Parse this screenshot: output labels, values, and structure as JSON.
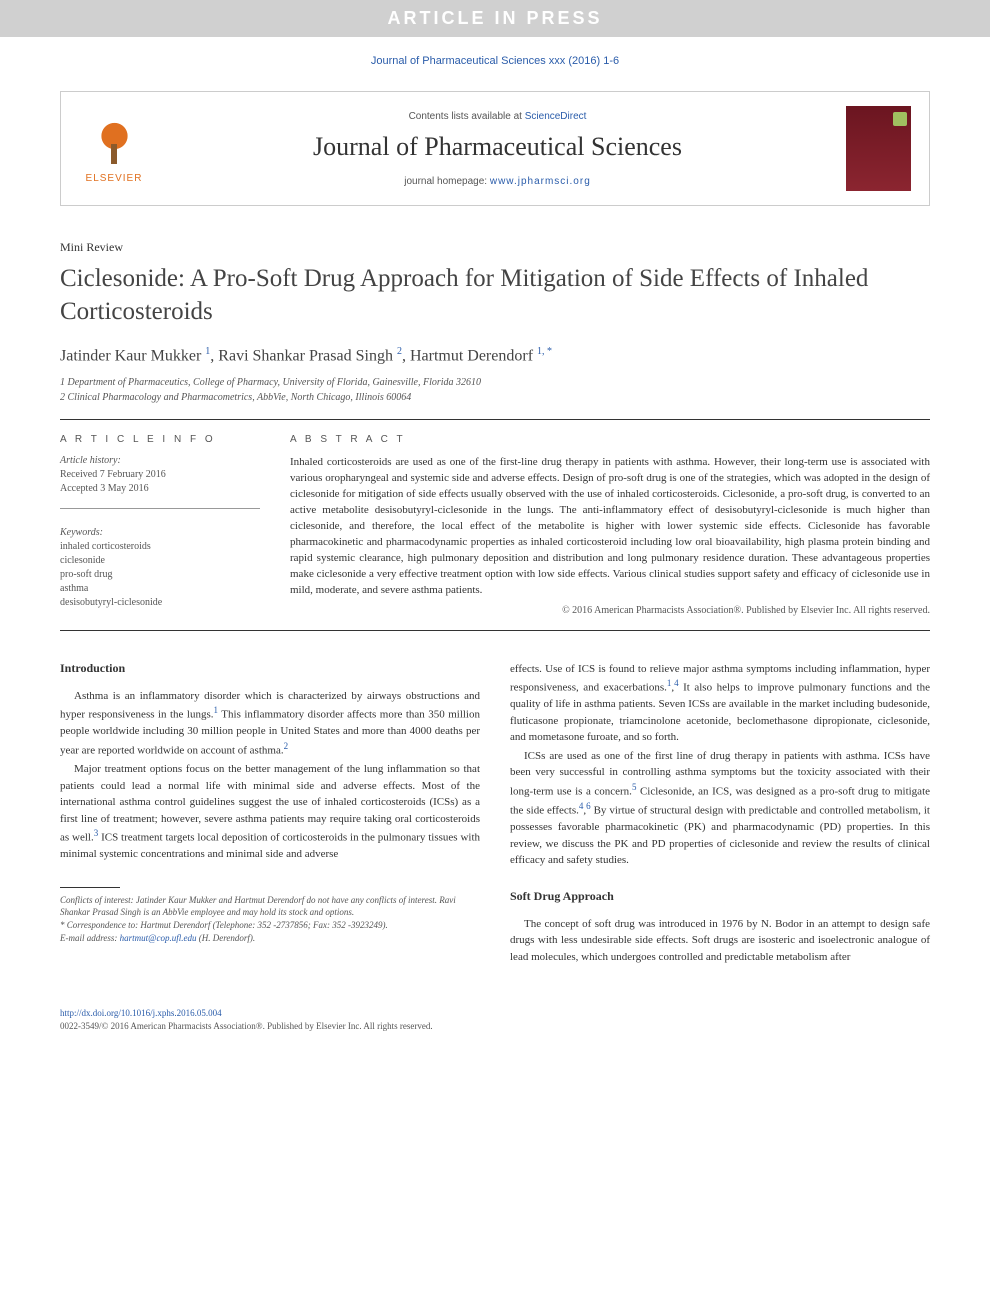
{
  "banner": {
    "text": "ARTICLE IN PRESS"
  },
  "citation": "Journal of Pharmaceutical Sciences xxx (2016) 1-6",
  "header": {
    "contents_prefix": "Contents lists available at ",
    "contents_link": "ScienceDirect",
    "journal_name": "Journal of Pharmaceutical Sciences",
    "homepage_prefix": "journal homepage: ",
    "homepage_url": "www.jpharmsci.org",
    "publisher_logo": "ELSEVIER"
  },
  "article": {
    "type": "Mini Review",
    "title": "Ciclesonide: A Pro-Soft Drug Approach for Mitigation of Side Effects of Inhaled Corticosteroids",
    "authors_html": "Jatinder Kaur Mukker <sup>1</sup>, Ravi Shankar Prasad Singh <sup>2</sup>, Hartmut Derendorf <sup>1, *</sup>",
    "affiliations": [
      "1 Department of Pharmaceutics, College of Pharmacy, University of Florida, Gainesville, Florida 32610",
      "2 Clinical Pharmacology and Pharmacometrics, AbbVie, North Chicago, Illinois 60064"
    ]
  },
  "info": {
    "heading": "A R T I C L E   I N F O",
    "history_label": "Article history:",
    "received": "Received 7 February 2016",
    "accepted": "Accepted 3 May 2016",
    "keywords_label": "Keywords:",
    "keywords": [
      "inhaled corticosteroids",
      "ciclesonide",
      "pro-soft drug",
      "asthma",
      "desisobutyryl-ciclesonide"
    ]
  },
  "abstract": {
    "heading": "A B S T R A C T",
    "text": "Inhaled corticosteroids are used as one of the first-line drug therapy in patients with asthma. However, their long-term use is associated with various oropharyngeal and systemic side and adverse effects. Design of pro-soft drug is one of the strategies, which was adopted in the design of ciclesonide for mitigation of side effects usually observed with the use of inhaled corticosteroids. Ciclesonide, a pro-soft drug, is converted to an active metabolite desisobutyryl-ciclesonide in the lungs. The anti-inflammatory effect of desisobutyryl-ciclesonide is much higher than ciclesonide, and therefore, the local effect of the metabolite is higher with lower systemic side effects. Ciclesonide has favorable pharmacokinetic and pharmacodynamic properties as inhaled corticosteroid including low oral bioavailability, high plasma protein binding and rapid systemic clearance, high pulmonary deposition and distribution and long pulmonary residence duration. These advantageous properties make ciclesonide a very effective treatment option with low side effects. Various clinical studies support safety and efficacy of ciclesonide use in mild, moderate, and severe asthma patients.",
    "copyright": "© 2016 American Pharmacists Association®. Published by Elsevier Inc. All rights reserved."
  },
  "sections": {
    "intro_heading": "Introduction",
    "intro_p1": "Asthma is an inflammatory disorder which is characterized by airways obstructions and hyper responsiveness in the lungs.¹ This inflammatory disorder affects more than 350 million people worldwide including 30 million people in United States and more than 4000 deaths per year are reported worldwide on account of asthma.²",
    "intro_p2": "Major treatment options focus on the better management of the lung inflammation so that patients could lead a normal life with minimal side and adverse effects. Most of the international asthma control guidelines suggest the use of inhaled corticosteroids (ICSs) as a first line of treatment; however, severe asthma patients may require taking oral corticosteroids as well.³ ICS treatment targets local deposition of corticosteroids in the pulmonary tissues with minimal systemic concentrations and minimal side and adverse",
    "col2_p1": "effects. Use of ICS is found to relieve major asthma symptoms including inflammation, hyper responsiveness, and exacerbations.¹,⁴ It also helps to improve pulmonary functions and the quality of life in asthma patients. Seven ICSs are available in the market including budesonide, fluticasone propionate, triamcinolone acetonide, beclomethasone dipropionate, ciclesonide, and mometasone furoate, and so forth.",
    "col2_p2": "ICSs are used as one of the first line of drug therapy in patients with asthma. ICSs have been very successful in controlling asthma symptoms but the toxicity associated with their long-term use is a concern.⁵ Ciclesonide, an ICS, was designed as a pro-soft drug to mitigate the side effects.⁴,⁶ By virtue of structural design with predictable and controlled metabolism, it possesses favorable pharmacokinetic (PK) and pharmacodynamic (PD) properties. In this review, we discuss the PK and PD properties of ciclesonide and review the results of clinical efficacy and safety studies.",
    "soft_heading": "Soft Drug Approach",
    "soft_p1": "The concept of soft drug was introduced in 1976 by N. Bodor in an attempt to design safe drugs with less undesirable side effects. Soft drugs are isosteric and isoelectronic analogue of lead molecules, which undergoes controlled and predictable metabolism after"
  },
  "footnotes": {
    "conflicts": "Conflicts of interest: Jatinder Kaur Mukker and Hartmut Derendorf do not have any conflicts of interest. Ravi Shankar Prasad Singh is an AbbVie employee and may hold its stock and options.",
    "correspondence": "* Correspondence to: Hartmut Derendorf (Telephone: 352 -2737856; Fax: 352 -3923249).",
    "email_label": "E-mail address: ",
    "email": "hartmut@cop.ufl.edu",
    "email_person": " (H. Derendorf)."
  },
  "footer": {
    "doi": "http://dx.doi.org/10.1016/j.xphs.2016.05.004",
    "issn_copyright": "0022-3549/© 2016 American Pharmacists Association®. Published by Elsevier Inc. All rights reserved."
  },
  "colors": {
    "link": "#2a5caa",
    "banner_bg": "#d0d0d0",
    "elsevier_orange": "#e07020",
    "cover_red": "#8b2530"
  }
}
